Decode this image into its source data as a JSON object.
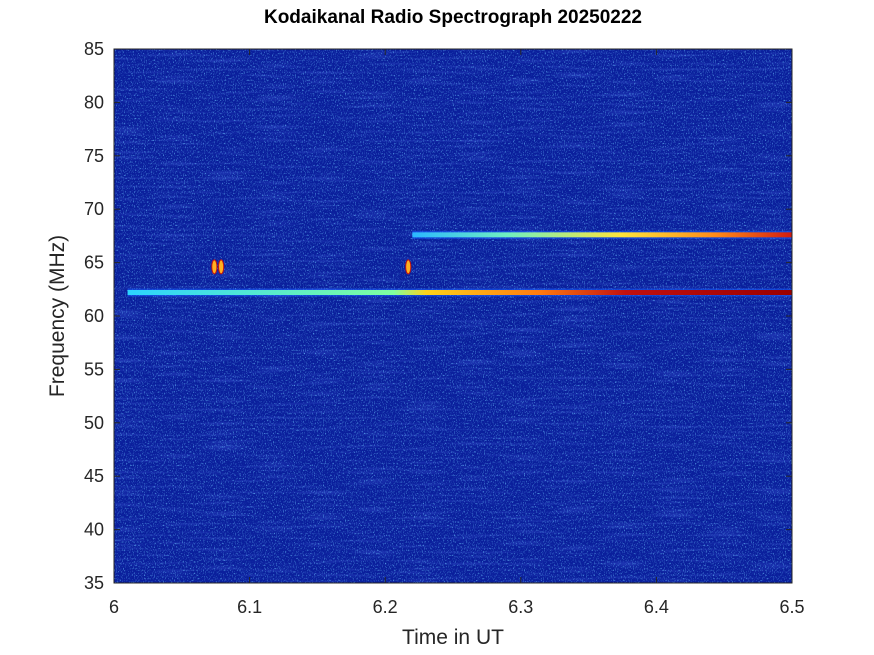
{
  "chart_data": {
    "type": "heatmap",
    "title": "Kodaikanal Radio Spectrograph  20250222",
    "xlabel": "Time in UT",
    "ylabel": "Frequency (MHz)",
    "xlim": [
      6,
      6.5
    ],
    "ylim": [
      35,
      85
    ],
    "xticks": [
      6,
      6.1,
      6.2,
      6.3,
      6.4,
      6.5
    ],
    "xtick_labels": [
      "6",
      "6.1",
      "6.2",
      "6.3",
      "6.4",
      "6.5"
    ],
    "yticks": [
      35,
      40,
      45,
      50,
      55,
      60,
      65,
      70,
      75,
      80,
      85
    ],
    "ytick_labels": [
      "35",
      "40",
      "45",
      "50",
      "55",
      "60",
      "65",
      "70",
      "75",
      "80",
      "85"
    ],
    "colormap": "jet",
    "background_color": "#0a1f9c",
    "features": [
      {
        "name": "emission-lane-62mhz",
        "frequency_mhz": 62.2,
        "t_start": 6.01,
        "t_end": 6.5,
        "intensity": "increasing"
      },
      {
        "name": "emission-lane-67.5mhz",
        "frequency_mhz": 67.6,
        "t_start": 6.22,
        "t_end": 6.5,
        "intensity": "increasing"
      },
      {
        "name": "spike-6.075",
        "frequency_mhz": 64.6,
        "time_ut": 6.074
      },
      {
        "name": "spike-6.08",
        "frequency_mhz": 64.6,
        "time_ut": 6.079
      },
      {
        "name": "spike-6.217",
        "frequency_mhz": 64.6,
        "time_ut": 6.217
      }
    ]
  }
}
